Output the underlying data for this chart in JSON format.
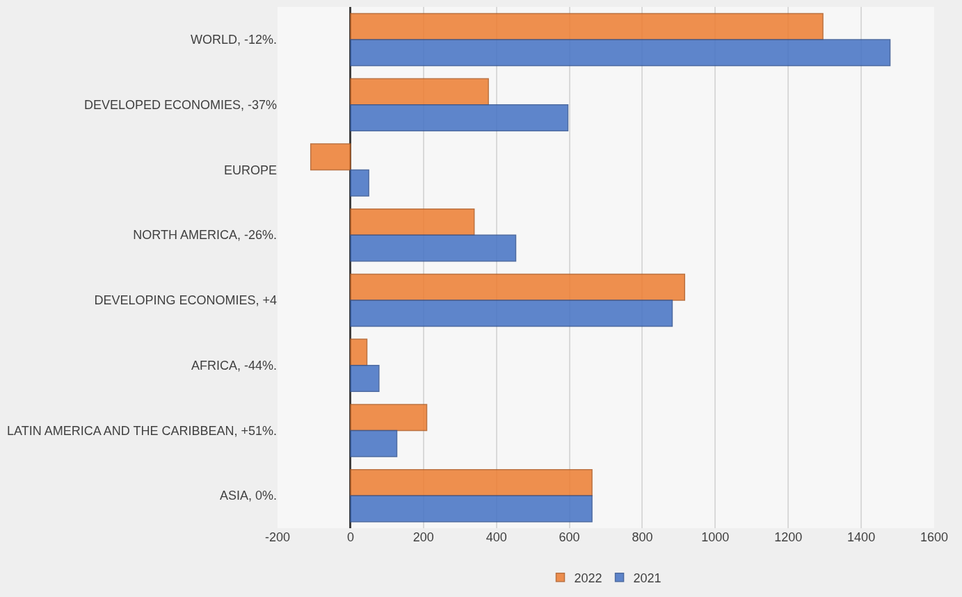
{
  "chart_data": {
    "type": "bar",
    "orientation": "horizontal",
    "categories": [
      "WORLD, -12%.",
      "DEVELOPED ECONOMIES, -37%",
      "EUROPE",
      "NORTH AMERICA, -26%.",
      "DEVELOPING ECONOMIES, +4",
      "AFRICA, -44%.",
      "LATIN AMERICA AND THE CARIBBEAN, +51%.",
      "ASIA, 0%."
    ],
    "series": [
      {
        "name": "2022",
        "color": "#ed7d31",
        "values": [
          1295,
          378,
          -109,
          339,
          916,
          45,
          209,
          662
        ]
      },
      {
        "name": "2021",
        "color": "#4472c4",
        "values": [
          1479,
          596,
          50,
          453,
          882,
          78,
          127,
          662
        ]
      }
    ],
    "xlim": [
      -200,
      1600
    ],
    "xticks": [
      -200,
      0,
      200,
      400,
      600,
      800,
      1000,
      1200,
      1400,
      1600
    ],
    "grid": "x",
    "legend": "bottom"
  }
}
